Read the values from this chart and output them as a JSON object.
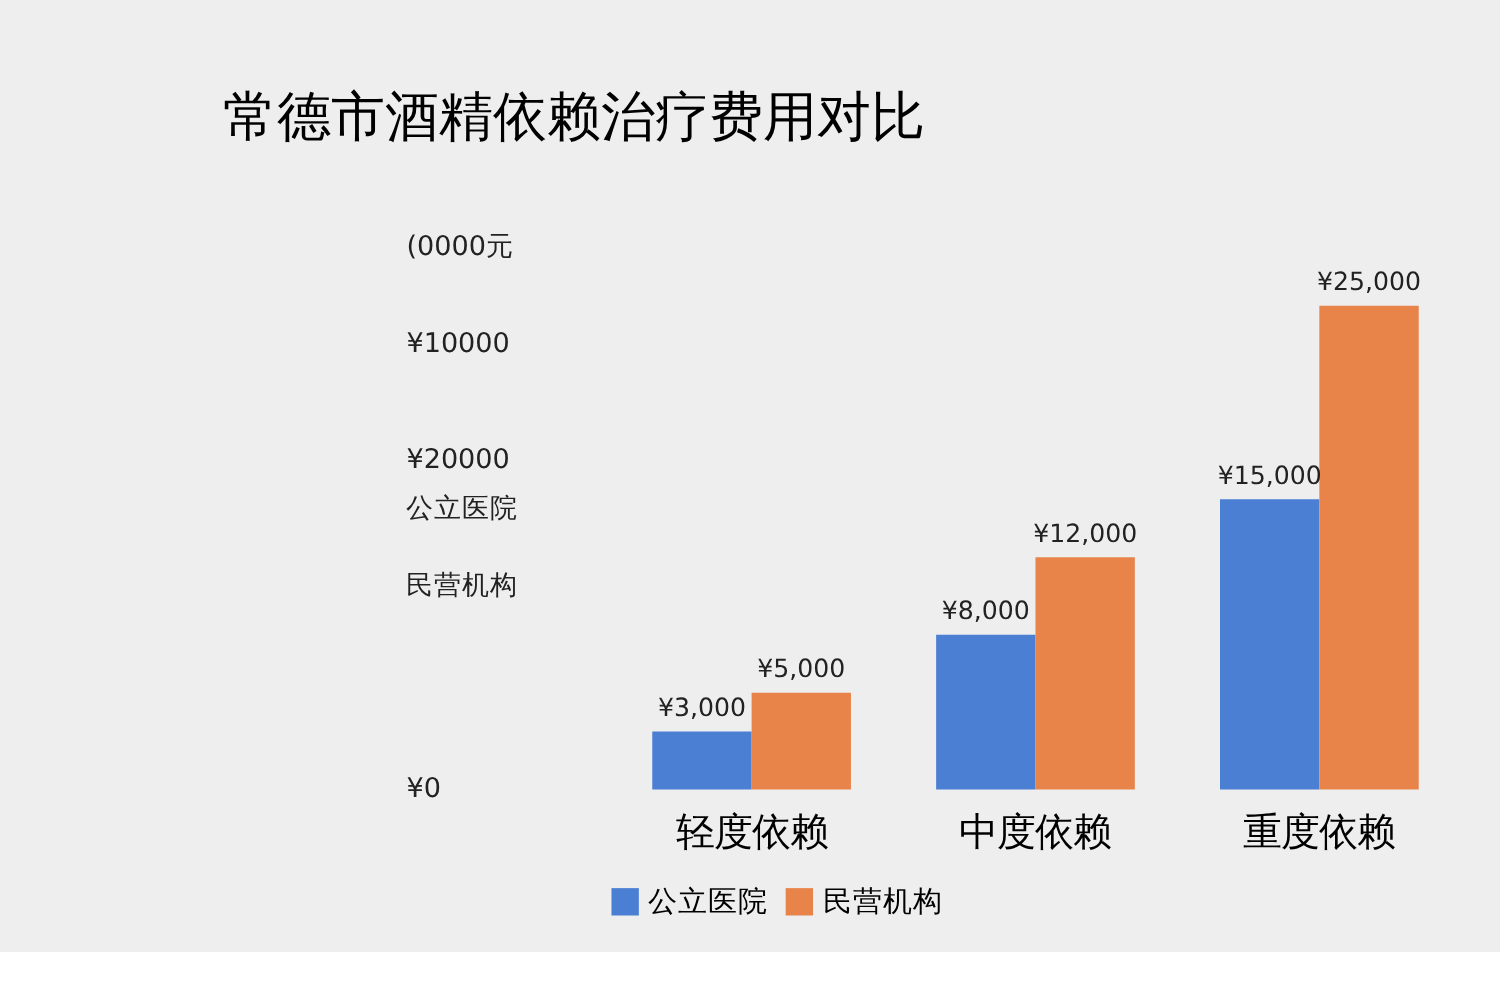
{
  "chart_data": {
    "type": "bar",
    "title": "常德市酒精依赖治疗费用对比",
    "categories": [
      "轻度依赖",
      "中度依赖",
      "重度依赖"
    ],
    "series": [
      {
        "name": "公立医院",
        "color": "#4a7fd4",
        "values": [
          3000,
          8000,
          15000
        ],
        "value_labels": [
          "¥3,000",
          "¥8,000",
          "¥15,000"
        ]
      },
      {
        "name": "民营机构",
        "color": "#e8834a",
        "values": [
          5000,
          12000,
          25000
        ],
        "value_labels": [
          "¥5,000",
          "¥12,000",
          "¥25,000"
        ]
      }
    ],
    "legend": "bottom",
    "annotations": [
      "(0000元",
      "¥10000",
      "¥20000",
      "公立医院",
      "民营机构",
      "¥0"
    ]
  }
}
